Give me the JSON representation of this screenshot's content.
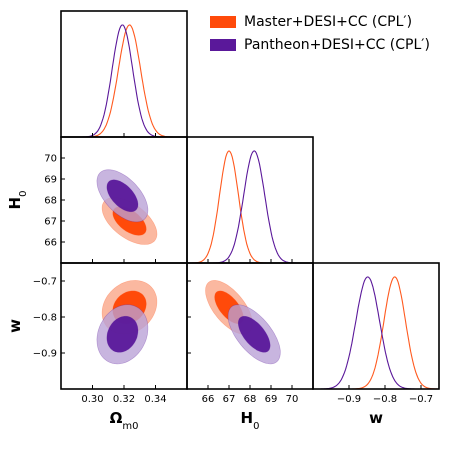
{
  "chart_data": {
    "type": "triangle_corner_plot",
    "parameters": [
      {
        "key": "om",
        "label": "Ω",
        "sub": "m0",
        "range": [
          0.28,
          0.36
        ],
        "ticks": [
          0.3,
          0.32,
          0.34
        ],
        "tick_labels": [
          "0.30",
          "0.32",
          "0.34"
        ]
      },
      {
        "key": "h0",
        "label": "H",
        "sub": "0",
        "range": [
          65.0,
          71.0
        ],
        "ticks": [
          66,
          67,
          68,
          69,
          70
        ],
        "tick_labels": [
          "66",
          "67",
          "68",
          "69",
          "70"
        ]
      },
      {
        "key": "w",
        "label": "w",
        "sub": "",
        "range": [
          -1.0,
          -0.65
        ],
        "ticks": [
          -0.9,
          -0.8,
          -0.7
        ],
        "tick_labels": [
          "−0.9",
          "−0.8",
          "−0.7"
        ]
      }
    ],
    "series": [
      {
        "name": "Master+DESI+CC (CPL′)",
        "color": "#ff5a1f",
        "contour_outer_fill": "#fbb8a0",
        "contour_inner_fill": "#ff4a0a",
        "mean": {
          "om": 0.3235,
          "h0": 67.0,
          "w": -0.773
        },
        "sigma": {
          "om": 0.007,
          "h0": 0.45,
          "w": 0.03
        },
        "corr": {
          "om_h0": -0.55,
          "om_w": 0.2,
          "h0_w": -0.62
        }
      },
      {
        "name": "Pantheon+DESI+CC (CPL′)",
        "color": "#5a189a",
        "contour_outer_fill": "#b8a0d6",
        "contour_inner_fill": "#5a189a",
        "mean": {
          "om": 0.319,
          "h0": 68.2,
          "w": -0.848
        },
        "sigma": {
          "om": 0.0065,
          "h0": 0.5,
          "w": 0.033
        },
        "corr": {
          "om_h0": -0.55,
          "om_w": 0.2,
          "h0_w": -0.62
        }
      }
    ]
  }
}
